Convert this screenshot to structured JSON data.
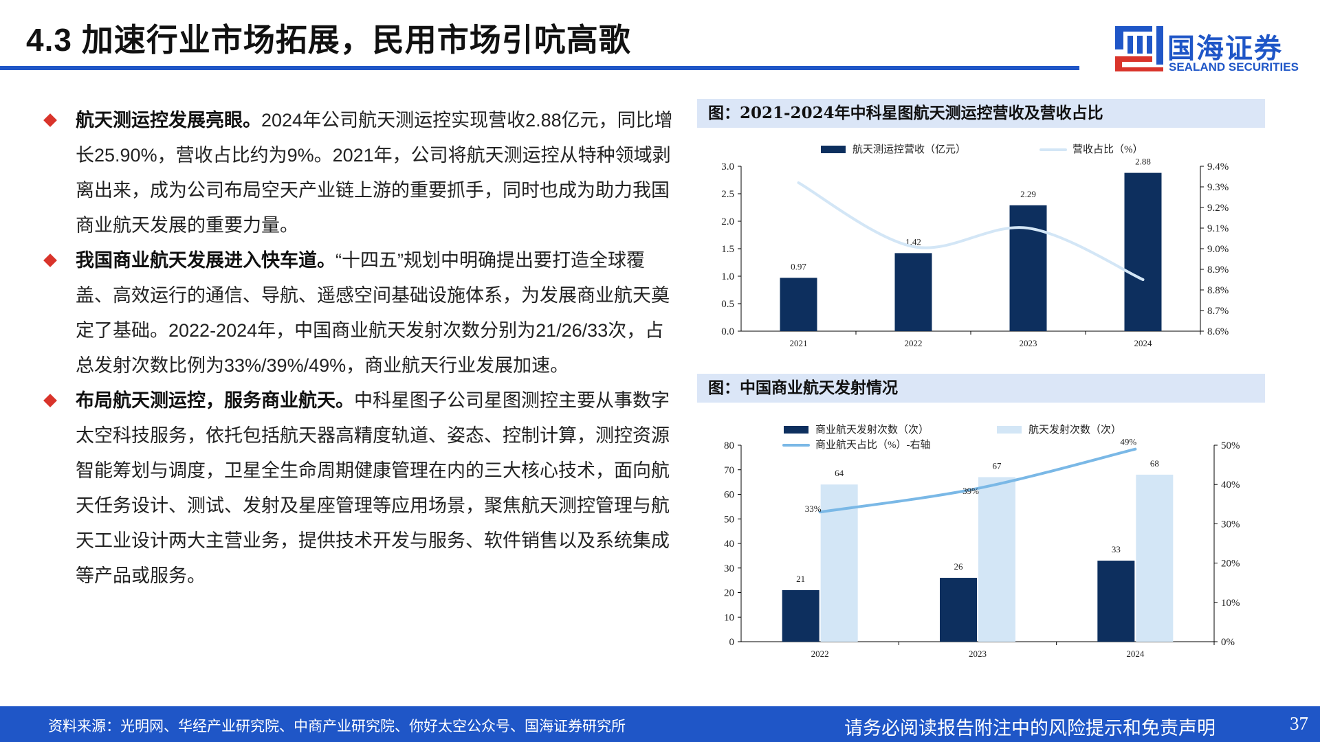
{
  "title": "4.3 加速行业市场拓展，民用市场引吭高歌",
  "logo": {
    "cn": "国海证券",
    "en": "SEALAND SECURITIES"
  },
  "bullets": [
    {
      "bold": "航天测运控发展亮眼。",
      "text": "2024年公司航天测运控实现营收2.88亿元，同比增长25.90%，营收占比约为9%。2021年，公司将航天测运控从特种领域剥离出来，成为公司布局空天产业链上游的重要抓手，同时也成为助力我国商业航天发展的重要力量。"
    },
    {
      "bold": "我国商业航天发展进入快车道。",
      "text": "“十四五”规划中明确提出要打造全球覆盖、高效运行的通信、导航、遥感空间基础设施体系，为发展商业航天奠定了基础。2022-2024年，中国商业航天发射次数分别为21/26/33次，占总发射次数比例为33%/39%/49%，商业航天行业发展加速。"
    },
    {
      "bold": "布局航天测运控，服务商业航天。",
      "text": "中科星图子公司星图测控主要从事数字太空科技服务，依托包括航天器高精度轨道、姿态、控制计算，测控资源智能筹划与调度，卫星全生命周期健康管理在内的三大核心技术，面向航天任务设计、测试、发射及星座管理等应用场景，聚焦航天测控管理与航天工业设计两大主营业务，提供技术开发与服务、软件销售以及系统集成等产品或服务。"
    }
  ],
  "figures": [
    {
      "heading": "图：2021-2024年中科星图航天测运控营收及营收占比"
    },
    {
      "heading": "图：中国商业航天发射情况"
    }
  ],
  "chart_data": [
    {
      "type": "bar",
      "title": "2021-2024年中科星图航天测运控营收及营收占比",
      "categories": [
        "2021",
        "2022",
        "2023",
        "2024"
      ],
      "series": [
        {
          "name": "航天测运控营收（亿元）",
          "type": "bar",
          "axis": "left",
          "values": [
            0.97,
            1.42,
            2.29,
            2.88
          ],
          "labels": [
            "0.97",
            "1.42",
            "2.29",
            "2.88"
          ],
          "color": "#0d2f5e"
        },
        {
          "name": "营收占比（%）",
          "type": "line",
          "axis": "right",
          "values": [
            9.32,
            9.01,
            9.1,
            8.85
          ],
          "color": "#d3e6f6"
        }
      ],
      "ylim": [
        0,
        3.0
      ],
      "yticks": [
        "0.0",
        "0.5",
        "1.0",
        "1.5",
        "2.0",
        "2.5",
        "3.0"
      ],
      "y2lim": [
        8.6,
        9.4
      ],
      "y2ticks": [
        "8.6%",
        "8.7%",
        "8.8%",
        "8.9%",
        "9.0%",
        "9.1%",
        "9.2%",
        "9.3%",
        "9.4%"
      ],
      "legend": "top"
    },
    {
      "type": "bar",
      "title": "中国商业航天发射情况",
      "categories": [
        "2022",
        "2023",
        "2024"
      ],
      "series": [
        {
          "name": "商业航天发射次数（次）",
          "type": "bar",
          "axis": "left",
          "values": [
            21,
            26,
            33
          ],
          "labels": [
            "21",
            "26",
            "33"
          ],
          "color": "#0d2f5e"
        },
        {
          "name": "航天发射次数（次）",
          "type": "bar",
          "axis": "left",
          "values": [
            64,
            67,
            68
          ],
          "labels": [
            "64",
            "67",
            "68"
          ],
          "color": "#d3e6f6"
        },
        {
          "name": "商业航天占比（%）-右轴",
          "type": "line",
          "axis": "right",
          "values": [
            33,
            39,
            49
          ],
          "labels": [
            "33%",
            "39%",
            "49%"
          ],
          "color": "#7ab8e6"
        }
      ],
      "ylim": [
        0,
        80
      ],
      "yticks": [
        "0",
        "10",
        "20",
        "30",
        "40",
        "50",
        "60",
        "70",
        "80"
      ],
      "y2lim": [
        0,
        50
      ],
      "y2ticks": [
        "0%",
        "10%",
        "20%",
        "30%",
        "40%",
        "50%"
      ],
      "legend": "top"
    }
  ],
  "footer": {
    "source": "资料来源：光明网、华经产业研究院、中商产业研究院、你好太空公众号、国海证券研究所",
    "disclaimer": "请务必阅读报告附注中的风险提示和免责声明",
    "page": "37"
  }
}
